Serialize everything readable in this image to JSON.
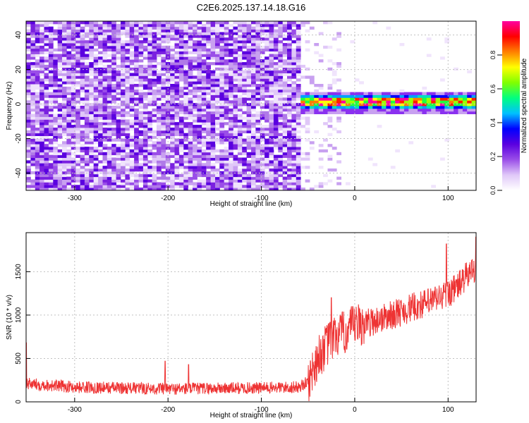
{
  "title": "C2E6.2025.137.14.18.G16",
  "chart_data": [
    {
      "type": "heatmap",
      "xlabel": "Height of straight line (km)",
      "ylabel": "Frequency (Hz)",
      "xlim": [
        -352,
        130
      ],
      "ylim": [
        -50,
        48
      ],
      "xticks": [
        -300,
        -200,
        -100,
        0,
        100
      ],
      "yticks": [
        -40,
        -20,
        0,
        20,
        40
      ],
      "noise_region_km": [
        -352,
        -60
      ],
      "sparse_region_km": [
        -60,
        -15
      ],
      "signal": {
        "start_km": -62,
        "end_km": 130,
        "frequency_hz": 1,
        "approx_band_halfwidth_hz": 6
      },
      "colorbar": {
        "label": "Normalized spectral amplitude",
        "ticks": [
          0.0,
          0.2,
          0.4,
          0.6,
          0.8
        ],
        "range": [
          0,
          1
        ],
        "colors": [
          "#ffffff",
          "#e0c8f8",
          "#9a4ee8",
          "#5a00e0",
          "#0000ff",
          "#00c0ff",
          "#00ff80",
          "#80ff00",
          "#ffff00",
          "#ff8000",
          "#ff0000",
          "#ff00a0"
        ]
      }
    },
    {
      "type": "line",
      "xlabel": "Height of straight line (km)",
      "ylabel": "SNR (10 * v/v)",
      "xlim": [
        -352,
        130
      ],
      "ylim": [
        0,
        1950
      ],
      "xticks": [
        -300,
        -200,
        -100,
        0,
        100
      ],
      "yticks": [
        0,
        500,
        1000,
        1500
      ],
      "series": [
        {
          "color": "#ee3333",
          "trend_x": [
            -352,
            -300,
            -200,
            -100,
            -60,
            -50,
            -40,
            -30,
            -20,
            -10,
            0,
            10,
            20,
            40,
            60,
            80,
            100,
            110,
            120,
            130
          ],
          "trend_y": [
            210,
            170,
            150,
            160,
            170,
            230,
            500,
            650,
            760,
            800,
            870,
            900,
            930,
            1000,
            1080,
            1150,
            1250,
            1330,
            1450,
            1560
          ],
          "spikes": [
            {
              "x": -352,
              "y": 680
            },
            {
              "x": -203,
              "y": 470
            },
            {
              "x": -178,
              "y": 430
            },
            {
              "x": -25,
              "y": 1200
            },
            {
              "x": 98,
              "y": 1820
            },
            {
              "x": 130,
              "y": 1900
            }
          ]
        }
      ]
    }
  ]
}
